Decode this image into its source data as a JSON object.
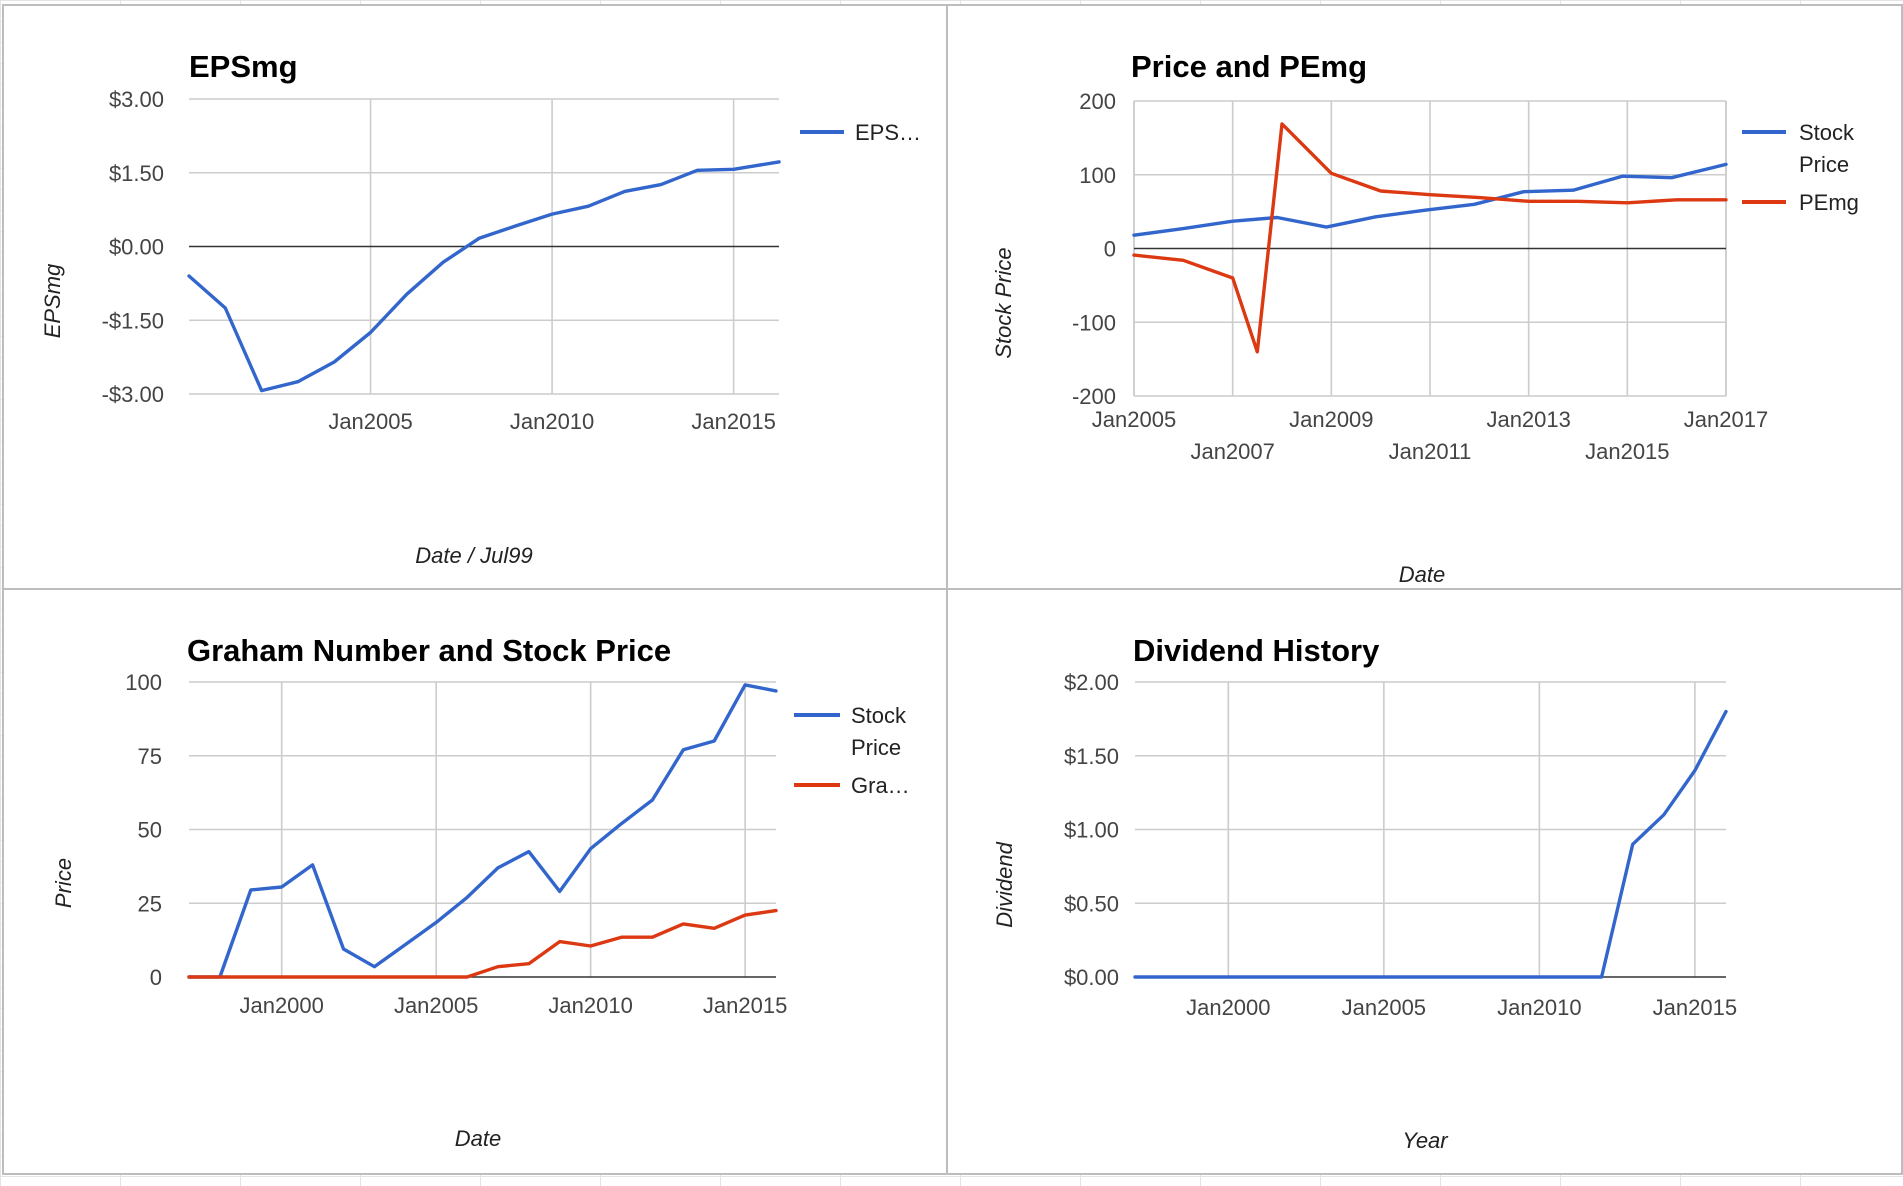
{
  "colors": {
    "blue": "#3366cc",
    "red": "#dc3912"
  },
  "chart_data": [
    {
      "type": "line",
      "title": "EPSmg",
      "xlabel": "Date / Jul99",
      "ylabel": "EPSmg",
      "ylim": [
        -3,
        3
      ],
      "xlim": [
        2000.0,
        2016.25
      ],
      "yticks": [
        3,
        1.5,
        0,
        -1.5,
        -3
      ],
      "ytick_labels": [
        "$3.00",
        "$1.50",
        "$0.00",
        "-$1.50",
        "-$3.00"
      ],
      "xticks": [
        2005,
        2010,
        2015
      ],
      "xtick_labels": [
        "Jan2005",
        "Jan2010",
        "Jan2015"
      ],
      "legend_labels": [
        "EPS…"
      ],
      "series": [
        {
          "name": "EPSmg",
          "color": "#3366cc",
          "x": [
            2000.0,
            2001.0,
            2002.0,
            2003.0,
            2004.0,
            2005.0,
            2006.0,
            2007.0,
            2008.0,
            2009.0,
            2010.0,
            2011.0,
            2012.0,
            2013.0,
            2014.0,
            2015.0,
            2016.25
          ],
          "values": [
            -0.6,
            -1.25,
            -2.93,
            -2.75,
            -2.35,
            -1.75,
            -0.97,
            -0.32,
            0.17,
            0.42,
            0.66,
            0.82,
            1.12,
            1.26,
            1.55,
            1.57,
            1.72
          ]
        }
      ]
    },
    {
      "type": "line",
      "title": "Price and PEmg",
      "xlabel": "Date",
      "ylabel": "Stock Price",
      "ylim": [
        -200,
        200
      ],
      "xlim": [
        2005.0,
        2017.0
      ],
      "yticks": [
        200,
        100,
        0,
        -100,
        -200
      ],
      "ytick_labels": [
        "200",
        "100",
        "0",
        "-100",
        "-200"
      ],
      "xticks": [
        2005,
        2007,
        2009,
        2011,
        2013,
        2015,
        2017
      ],
      "xtick_labels": [
        "Jan2005",
        "Jan2007",
        "Jan2009",
        "Jan2011",
        "Jan2013",
        "Jan2015",
        "Jan2017"
      ],
      "legend_labels": [
        "Stock",
        "Price",
        "PEmg"
      ],
      "series": [
        {
          "name": "Stock Price",
          "color": "#3366cc",
          "x": [
            2005.0,
            2006.0,
            2007.0,
            2007.9,
            2008.9,
            2009.9,
            2010.9,
            2011.9,
            2012.9,
            2013.9,
            2014.9,
            2015.9,
            2017.0
          ],
          "values": [
            18,
            27,
            37,
            42,
            29,
            43,
            52,
            60,
            77,
            79,
            98,
            96,
            114
          ]
        },
        {
          "name": "PEmg",
          "color": "#dc3912",
          "x": [
            2005.0,
            2006.0,
            2007.0,
            2007.5,
            2008.0,
            2009.0,
            2010.0,
            2011.0,
            2012.0,
            2013.0,
            2014.0,
            2015.0,
            2016.0,
            2017.0
          ],
          "values": [
            -9,
            -16,
            -40,
            -140,
            169,
            102,
            78,
            73,
            69,
            64,
            64,
            62,
            66,
            66
          ]
        }
      ]
    },
    {
      "type": "line",
      "title": "Graham Number and Stock Price",
      "xlabel": "Date",
      "ylabel": "Price",
      "ylim": [
        0,
        100
      ],
      "xlim": [
        1997.0,
        2016.0
      ],
      "yticks": [
        100,
        75,
        50,
        25,
        0
      ],
      "ytick_labels": [
        "100",
        "75",
        "50",
        "25",
        "0"
      ],
      "xticks": [
        2000,
        2005,
        2010,
        2015
      ],
      "xtick_labels": [
        "Jan2000",
        "Jan2005",
        "Jan2010",
        "Jan2015"
      ],
      "legend_labels": [
        "Stock",
        "Price",
        "Gra…"
      ],
      "series": [
        {
          "name": "Stock Price",
          "color": "#3366cc",
          "x": [
            1997.0,
            1998.0,
            1999.0,
            2000.0,
            2001.0,
            2002.0,
            2003.0,
            2004.0,
            2005.0,
            2006.0,
            2007.0,
            2008.0,
            2009.0,
            2010.0,
            2011.0,
            2012.0,
            2013.0,
            2014.0,
            2015.0,
            2016.0
          ],
          "values": [
            0,
            0,
            29.5,
            30.5,
            38,
            9.5,
            3.5,
            11,
            18.5,
            27,
            37,
            42.5,
            29,
            43.5,
            52,
            60,
            77,
            80,
            99,
            97
          ]
        },
        {
          "name": "Graham Number",
          "color": "#dc3912",
          "x": [
            1997.0,
            1998.0,
            1999.0,
            2000.0,
            2001.0,
            2002.0,
            2003.0,
            2004.0,
            2005.0,
            2006.0,
            2007.0,
            2008.0,
            2009.0,
            2010.0,
            2011.0,
            2012.0,
            2013.0,
            2014.0,
            2015.0,
            2016.0
          ],
          "values": [
            0,
            0,
            0,
            0,
            0,
            0,
            0,
            0,
            0,
            0,
            3.5,
            4.5,
            12,
            10.5,
            13.5,
            13.5,
            18,
            16.5,
            21,
            22.5
          ]
        }
      ]
    },
    {
      "type": "line",
      "title": "Dividend History",
      "xlabel": "Year",
      "ylabel": "Dividend",
      "ylim": [
        0,
        2
      ],
      "xlim": [
        1997.0,
        2016.0
      ],
      "yticks": [
        2,
        1.5,
        1,
        0.5,
        0
      ],
      "ytick_labels": [
        "$2.00",
        "$1.50",
        "$1.00",
        "$0.50",
        "$0.00"
      ],
      "xticks": [
        2000,
        2005,
        2010,
        2015
      ],
      "xtick_labels": [
        "Jan2000",
        "Jan2005",
        "Jan2010",
        "Jan2015"
      ],
      "legend_labels": [],
      "series": [
        {
          "name": "Dividend",
          "color": "#3366cc",
          "x": [
            1997.0,
            2012.0,
            2013.0,
            2014.0,
            2015.0,
            2016.0
          ],
          "values": [
            0,
            0,
            0.9,
            1.1,
            1.4,
            1.8
          ]
        }
      ]
    }
  ]
}
